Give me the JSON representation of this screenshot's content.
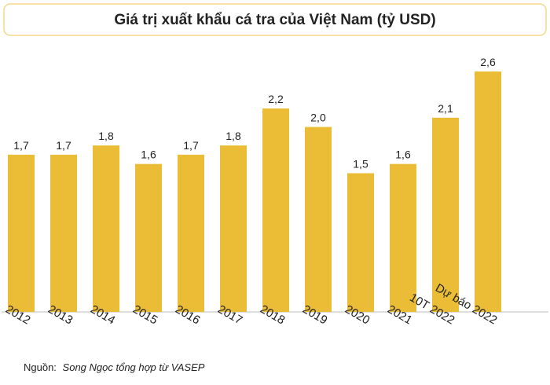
{
  "chart_data": {
    "type": "bar",
    "title": "Giá trị xuất khẩu cá tra của Việt Nam (tỷ USD)",
    "categories": [
      "2012",
      "2013",
      "2014",
      "2015",
      "2016",
      "2017",
      "2018",
      "2019",
      "2020",
      "2021",
      "10T 2022",
      "Dự báo 2022"
    ],
    "values": [
      1.7,
      1.7,
      1.8,
      1.6,
      1.7,
      1.8,
      2.2,
      2.0,
      1.5,
      1.6,
      2.1,
      2.6
    ],
    "value_labels": [
      "1,7",
      "1,7",
      "1,8",
      "1,6",
      "1,7",
      "1,8",
      "2,2",
      "2,0",
      "1,5",
      "1,6",
      "2,1",
      "2,6"
    ],
    "color": "#ebbd36",
    "source_label": "Nguồn:",
    "source": "Song Ngọc tổng hợp từ VASEP"
  }
}
